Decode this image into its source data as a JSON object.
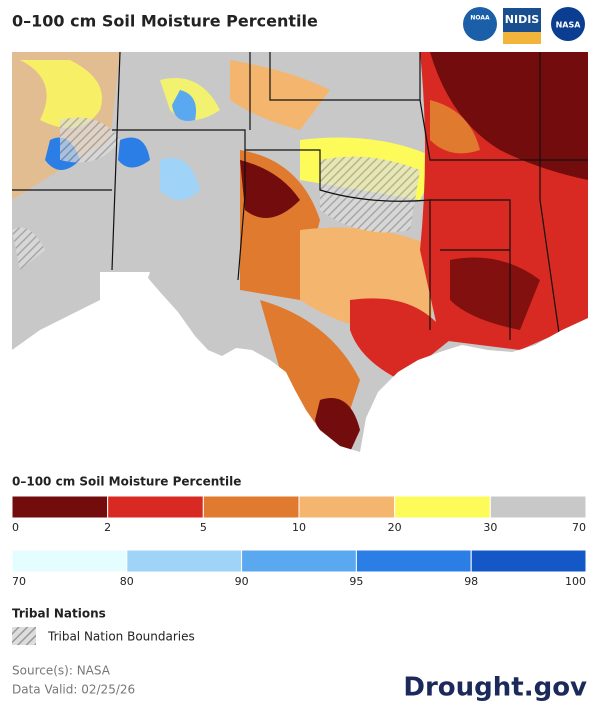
{
  "title": "0–100 cm Soil Moisture Percentile",
  "logos": [
    "NOAA",
    "NIDIS",
    "NASA"
  ],
  "legend": {
    "title": "0–100 cm Soil Moisture Percentile",
    "dry": {
      "colors": [
        "#730c0c",
        "#d82a22",
        "#e07a2e",
        "#f4b56e",
        "#fdfb5a",
        "#c8c8c8"
      ],
      "ticks": [
        0,
        2,
        5,
        10,
        20,
        30,
        70
      ]
    },
    "wet": {
      "colors": [
        "#e4fdff",
        "#9fd3f7",
        "#5aa8ef",
        "#2b7ee6",
        "#1458c8"
      ],
      "ticks": [
        70,
        80,
        90,
        95,
        98,
        100
      ]
    }
  },
  "tribal": {
    "title": "Tribal Nations",
    "label": "Tribal Nation Boundaries"
  },
  "source": "Source(s): NASA",
  "valid": "Data Valid: 02/25/26",
  "brand": "Drought.gov"
}
